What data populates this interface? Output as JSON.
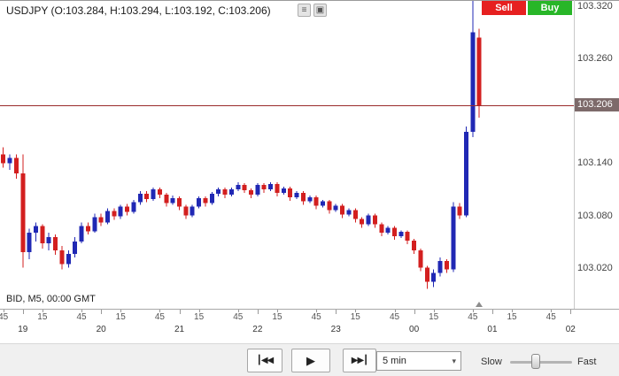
{
  "header": {
    "title": "USDJPY (O:103.284, H:103.294, L:103.192, C:103.206)",
    "icons": [
      {
        "name": "chart-menu-icon",
        "glyph": "≡"
      },
      {
        "name": "chart-popout-icon",
        "glyph": "▣"
      }
    ],
    "sell_label": "Sell",
    "buy_label": "Buy",
    "sell_color": "#e62020",
    "buy_color": "#28b628"
  },
  "chart_info": "BID, M5, 00:00 GMT",
  "price_axis": {
    "labels": [
      103.32,
      103.26,
      103.14,
      103.08,
      103.02
    ],
    "current_label": "103.206",
    "current_value": 103.206,
    "badge_color": "#7d6a6a",
    "line_color": "#9a2b2b"
  },
  "time_axis": {
    "minutes": [
      {
        "label": "45",
        "slot": 0
      },
      {
        "label": "15",
        "slot": 6
      },
      {
        "label": "45",
        "slot": 12
      },
      {
        "label": "15",
        "slot": 18
      },
      {
        "label": "45",
        "slot": 24
      },
      {
        "label": "15",
        "slot": 30
      },
      {
        "label": "45",
        "slot": 36
      },
      {
        "label": "15",
        "slot": 42
      },
      {
        "label": "45",
        "slot": 48
      },
      {
        "label": "15",
        "slot": 54
      },
      {
        "label": "45",
        "slot": 60
      },
      {
        "label": "15",
        "slot": 66
      },
      {
        "label": "45",
        "slot": 72
      },
      {
        "label": "15",
        "slot": 78
      },
      {
        "label": "45",
        "slot": 84
      }
    ],
    "hours": [
      {
        "label": "19",
        "slot": 3
      },
      {
        "label": "20",
        "slot": 15
      },
      {
        "label": "21",
        "slot": 27
      },
      {
        "label": "22",
        "slot": 39
      },
      {
        "label": "23",
        "slot": 51
      },
      {
        "label": "00",
        "slot": 63
      },
      {
        "label": "01",
        "slot": 75
      },
      {
        "label": "02",
        "slot": 87
      }
    ]
  },
  "chart_data": {
    "type": "candlestick",
    "symbol": "USDJPY",
    "interval": "5 min",
    "price_type": "BID",
    "session_note": "00:00 GMT",
    "start_time": "18:45",
    "interval_minutes": 5,
    "up_color": "#2028b4",
    "down_color": "#d31f1f",
    "ylim": [
      102.973,
      103.327
    ],
    "candles": [
      [
        103.15,
        103.158,
        103.135,
        103.14
      ],
      [
        103.14,
        103.15,
        103.132,
        103.146
      ],
      [
        103.146,
        103.15,
        103.122,
        103.128
      ],
      [
        103.128,
        103.15,
        103.02,
        103.038
      ],
      [
        103.038,
        103.065,
        103.03,
        103.06
      ],
      [
        103.06,
        103.072,
        103.05,
        103.068
      ],
      [
        103.068,
        103.07,
        103.042,
        103.048
      ],
      [
        103.048,
        103.06,
        103.04,
        103.055
      ],
      [
        103.055,
        103.058,
        103.035,
        103.04
      ],
      [
        103.04,
        103.045,
        103.018,
        103.024
      ],
      [
        103.024,
        103.04,
        103.02,
        103.036
      ],
      [
        103.036,
        103.055,
        103.032,
        103.05
      ],
      [
        103.05,
        103.072,
        103.048,
        103.068
      ],
      [
        103.068,
        103.072,
        103.058,
        103.062
      ],
      [
        103.062,
        103.082,
        103.06,
        103.078
      ],
      [
        103.078,
        103.082,
        103.068,
        103.072
      ],
      [
        103.072,
        103.088,
        103.07,
        103.085
      ],
      [
        103.085,
        103.088,
        103.075,
        103.079
      ],
      [
        103.079,
        103.092,
        103.076,
        103.09
      ],
      [
        103.09,
        103.093,
        103.08,
        103.084
      ],
      [
        103.084,
        103.098,
        103.082,
        103.095
      ],
      [
        103.095,
        103.108,
        103.092,
        103.105
      ],
      [
        103.105,
        103.108,
        103.095,
        103.099
      ],
      [
        103.099,
        103.112,
        103.097,
        103.11
      ],
      [
        103.11,
        103.112,
        103.1,
        103.104
      ],
      [
        103.104,
        103.106,
        103.09,
        103.094
      ],
      [
        103.094,
        103.103,
        103.092,
        103.1
      ],
      [
        103.1,
        103.102,
        103.086,
        103.09
      ],
      [
        103.09,
        103.092,
        103.076,
        103.08
      ],
      [
        103.08,
        103.092,
        103.078,
        103.09
      ],
      [
        103.09,
        103.102,
        103.088,
        103.1
      ],
      [
        103.1,
        103.102,
        103.09,
        103.094
      ],
      [
        103.094,
        103.107,
        103.092,
        103.105
      ],
      [
        103.105,
        103.112,
        103.102,
        103.11
      ],
      [
        103.11,
        103.112,
        103.1,
        103.104
      ],
      [
        103.104,
        103.112,
        103.102,
        103.11
      ],
      [
        103.11,
        103.118,
        103.108,
        103.115
      ],
      [
        103.115,
        103.117,
        103.106,
        103.109
      ],
      [
        103.109,
        103.111,
        103.1,
        103.104
      ],
      [
        103.104,
        103.117,
        103.102,
        103.115
      ],
      [
        103.115,
        103.117,
        103.106,
        103.11
      ],
      [
        103.11,
        103.118,
        103.108,
        103.116
      ],
      [
        103.116,
        103.118,
        103.102,
        103.106
      ],
      [
        103.106,
        103.113,
        103.104,
        103.111
      ],
      [
        103.111,
        103.113,
        103.097,
        103.101
      ],
      [
        103.101,
        103.108,
        103.099,
        103.106
      ],
      [
        103.106,
        103.108,
        103.092,
        103.096
      ],
      [
        103.096,
        103.103,
        103.094,
        103.101
      ],
      [
        103.101,
        103.103,
        103.087,
        103.091
      ],
      [
        103.091,
        103.098,
        103.089,
        103.096
      ],
      [
        103.096,
        103.098,
        103.082,
        103.086
      ],
      [
        103.086,
        103.093,
        103.084,
        103.091
      ],
      [
        103.091,
        103.093,
        103.077,
        103.081
      ],
      [
        103.081,
        103.088,
        103.079,
        103.086
      ],
      [
        103.086,
        103.088,
        103.072,
        103.076
      ],
      [
        103.076,
        103.078,
        103.066,
        103.07
      ],
      [
        103.07,
        103.082,
        103.068,
        103.08
      ],
      [
        103.08,
        103.082,
        103.066,
        103.07
      ],
      [
        103.07,
        103.072,
        103.056,
        103.06
      ],
      [
        103.06,
        103.068,
        103.058,
        103.066
      ],
      [
        103.066,
        103.068,
        103.052,
        103.056
      ],
      [
        103.056,
        103.063,
        103.054,
        103.061
      ],
      [
        103.061,
        103.063,
        103.047,
        103.051
      ],
      [
        103.051,
        103.053,
        103.036,
        103.04
      ],
      [
        103.04,
        103.042,
        103.016,
        103.02
      ],
      [
        103.02,
        103.022,
        102.996,
        103.004
      ],
      [
        103.004,
        103.018,
        102.998,
        103.014
      ],
      [
        103.014,
        103.032,
        103.01,
        103.028
      ],
      [
        103.028,
        103.03,
        103.014,
        103.018
      ],
      [
        103.018,
        103.095,
        103.015,
        103.09
      ],
      [
        103.09,
        103.094,
        103.076,
        103.08
      ],
      [
        103.08,
        103.182,
        103.078,
        103.176
      ],
      [
        103.176,
        103.326,
        103.17,
        103.29
      ],
      [
        103.284,
        103.294,
        103.192,
        103.206
      ]
    ]
  },
  "controls": {
    "skip_start_glyph": "┃◀◀",
    "play_glyph": "▶",
    "skip_end_glyph": "▶▶┃",
    "interval_value": "5 min",
    "dropdown_arrow": "▾",
    "slow_label": "Slow",
    "fast_label": "Fast",
    "speed_percent": 40
  }
}
